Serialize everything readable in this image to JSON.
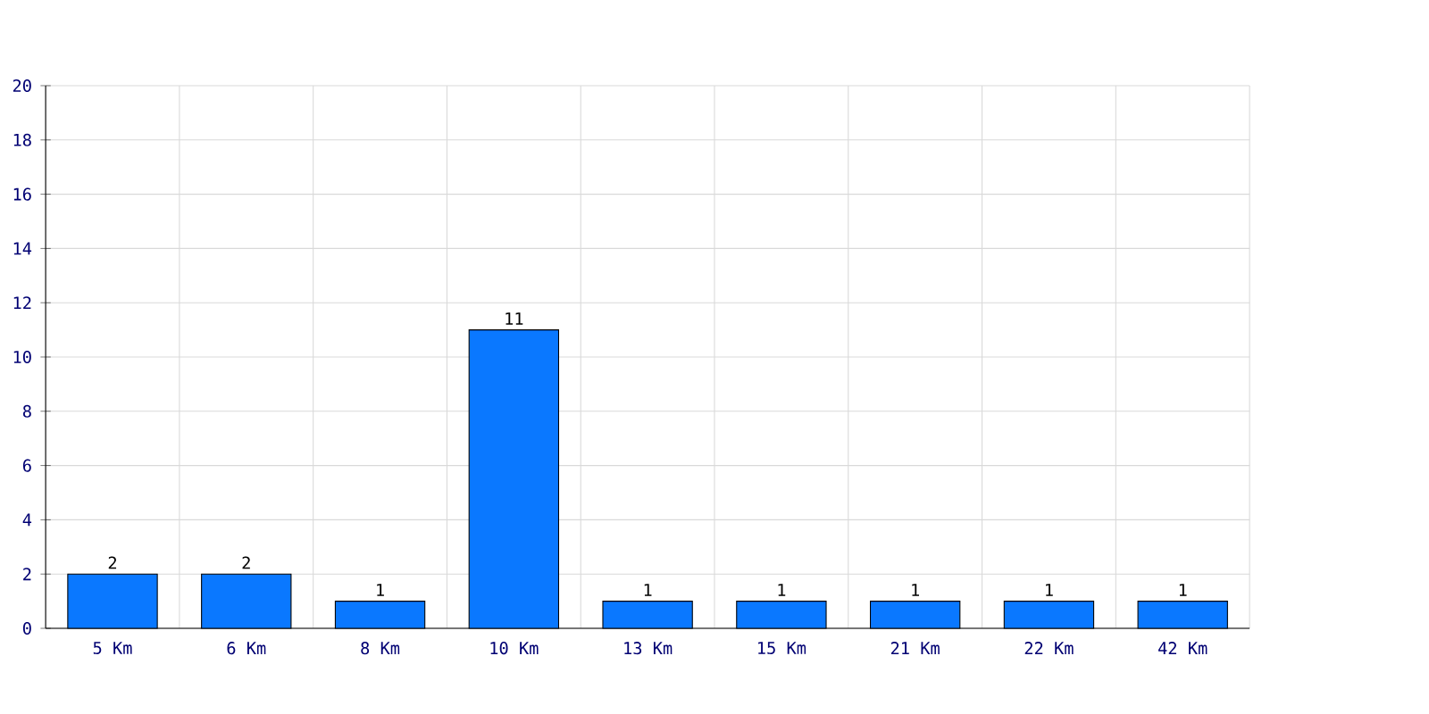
{
  "chart_data": {
    "type": "bar",
    "categories": [
      "5 Km",
      "6 Km",
      "8 Km",
      "10 Km",
      "13 Km",
      "15 Km",
      "21 Km",
      "22 Km",
      "42 Km"
    ],
    "values": [
      2,
      2,
      1,
      11,
      1,
      1,
      1,
      1,
      1
    ],
    "color": "#0a78ff",
    "ylim": [
      0,
      20
    ],
    "yticks": [
      0,
      2,
      4,
      6,
      8,
      10,
      12,
      14,
      16,
      18,
      20
    ],
    "grid": true,
    "data_labels": true
  }
}
